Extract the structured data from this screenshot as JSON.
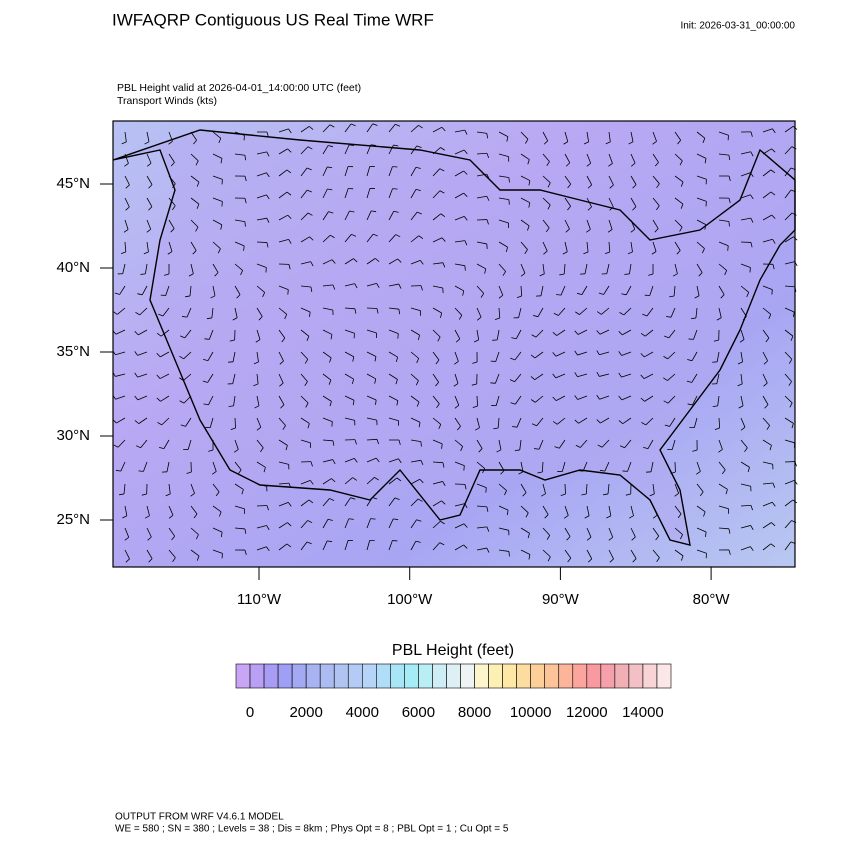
{
  "header": {
    "title": "IWFAQRP Contiguous US Real Time WRF",
    "init": "Init: 2026-03-31_00:00:00"
  },
  "map": {
    "subtitle": "PBL Height valid at 2026-04-01_14:00:00 UTC   (feet)",
    "subtitle2": "Transport Winds   (kts)",
    "lat_ticks": [
      {
        "value": 45,
        "label": "45°N"
      },
      {
        "value": 40,
        "label": "40°N"
      },
      {
        "value": 35,
        "label": "35°N"
      },
      {
        "value": 30,
        "label": "30°N"
      },
      {
        "value": 25,
        "label": "25°N"
      }
    ],
    "lon_ticks": [
      {
        "value": -110,
        "label": "110°W"
      },
      {
        "value": -100,
        "label": "100°W"
      },
      {
        "value": -90,
        "label": "90°W"
      },
      {
        "value": -80,
        "label": "80°W"
      }
    ]
  },
  "colorbar": {
    "title": "PBL Height  (feet)",
    "range": [
      -500,
      15000
    ],
    "colors": [
      "#c9a6f5",
      "#b9a0f5",
      "#a99cf5",
      "#9f9ff5",
      "#a3a9f2",
      "#a8b4f2",
      "#acbcf2",
      "#b0c4f2",
      "#b4cbf5",
      "#b5d4f7",
      "#b0ddf7",
      "#a8e5f7",
      "#a5ecf7",
      "#b9eef5",
      "#cdeef5",
      "#dff0f5",
      "#eef3f3",
      "#fdf5cc",
      "#fdf0b5",
      "#fde8a5",
      "#fddca0",
      "#fdd09a",
      "#fdc49a",
      "#fcb49a",
      "#fba59c",
      "#f99aa0",
      "#f5a0aa",
      "#f0b0b5",
      "#f3c0c5",
      "#f8d4d6",
      "#fbe6e8"
    ],
    "ticks": [
      0,
      2000,
      4000,
      6000,
      8000,
      10000,
      12000,
      14000
    ]
  },
  "footer": {
    "line1": "OUTPUT FROM WRF V4.6.1 MODEL",
    "line2": "WE = 580 ; SN = 380 ; Levels = 38 ; Dis = 8km ; Phys Opt = 8 ; PBL Opt = 1 ; Cu Opt = 5"
  }
}
